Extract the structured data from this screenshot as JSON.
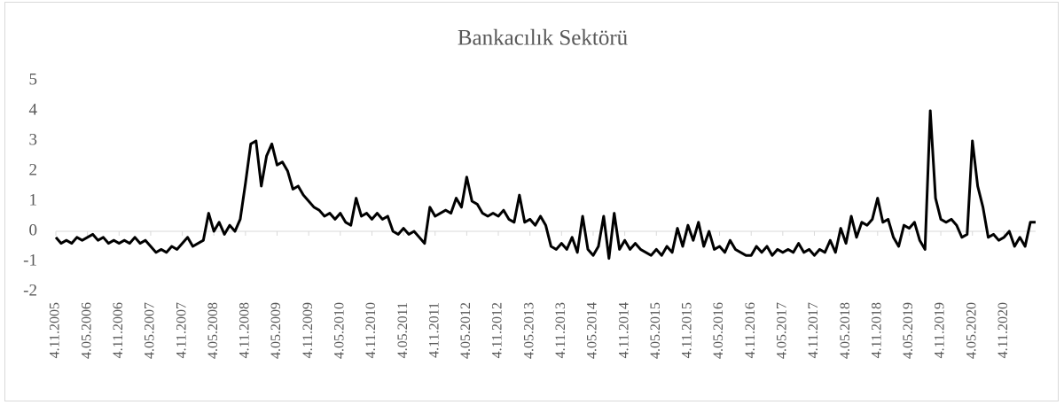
{
  "chart_data": {
    "type": "line",
    "title": "Bankacılık Sektörü",
    "categories": [
      "4.11.2005",
      null,
      null,
      null,
      null,
      null,
      "4.05.2006",
      null,
      null,
      null,
      null,
      null,
      "4.11.2006",
      null,
      null,
      null,
      null,
      null,
      "4.05.2007",
      null,
      null,
      null,
      null,
      null,
      "4.11.2007",
      null,
      null,
      null,
      null,
      null,
      "4.05.2008",
      null,
      null,
      null,
      null,
      null,
      "4.11.2008",
      null,
      null,
      null,
      null,
      null,
      "4.05.2009",
      null,
      null,
      null,
      null,
      null,
      "4.11.2009",
      null,
      null,
      null,
      null,
      null,
      "4.05.2010",
      null,
      null,
      null,
      null,
      null,
      "4.11.2010",
      null,
      null,
      null,
      null,
      null,
      "4.05.2011",
      null,
      null,
      null,
      null,
      null,
      "4.11.2011",
      null,
      null,
      null,
      null,
      null,
      "4.05.2012",
      null,
      null,
      null,
      null,
      null,
      "4.11.2012",
      null,
      null,
      null,
      null,
      null,
      "4.05.2013",
      null,
      null,
      null,
      null,
      null,
      "4.11.2013",
      null,
      null,
      null,
      null,
      null,
      "4.05.2014",
      null,
      null,
      null,
      null,
      null,
      "4.11.2014",
      null,
      null,
      null,
      null,
      null,
      "4.05.2015",
      null,
      null,
      null,
      null,
      null,
      "4.11.2015",
      null,
      null,
      null,
      null,
      null,
      "4.05.2016",
      null,
      null,
      null,
      null,
      null,
      "4.11.2016",
      null,
      null,
      null,
      null,
      null,
      "4.05.2017",
      null,
      null,
      null,
      null,
      null,
      "4.11.2017",
      null,
      null,
      null,
      null,
      null,
      "4.05.2018",
      null,
      null,
      null,
      null,
      null,
      "4.11.2018",
      null,
      null,
      null,
      null,
      null,
      "4.05.2019",
      null,
      null,
      null,
      null,
      null,
      "4.11.2019",
      null,
      null,
      null,
      null,
      null,
      "4.05.2020",
      null,
      null,
      null,
      null,
      null,
      "4.11.2020",
      null,
      null,
      null,
      null,
      null,
      null
    ],
    "series": [
      {
        "name": "Bankacılık Sektörü",
        "color": "#000000",
        "values": [
          -0.2,
          -0.4,
          -0.3,
          -0.4,
          -0.2,
          -0.3,
          -0.2,
          -0.1,
          -0.3,
          -0.2,
          -0.4,
          -0.3,
          -0.4,
          -0.3,
          -0.4,
          -0.2,
          -0.4,
          -0.3,
          -0.5,
          -0.7,
          -0.6,
          -0.7,
          -0.5,
          -0.6,
          -0.4,
          -0.2,
          -0.5,
          -0.4,
          -0.3,
          0.6,
          0.0,
          0.3,
          -0.1,
          0.2,
          0.0,
          0.4,
          1.6,
          2.9,
          3.0,
          1.5,
          2.5,
          2.9,
          2.2,
          2.3,
          2.0,
          1.4,
          1.5,
          1.2,
          1.0,
          0.8,
          0.7,
          0.5,
          0.6,
          0.4,
          0.6,
          0.3,
          0.2,
          1.1,
          0.5,
          0.6,
          0.4,
          0.6,
          0.4,
          0.5,
          0.0,
          -0.1,
          0.1,
          -0.1,
          0.0,
          -0.2,
          -0.4,
          0.8,
          0.5,
          0.6,
          0.7,
          0.6,
          1.1,
          0.8,
          1.8,
          1.0,
          0.9,
          0.6,
          0.5,
          0.6,
          0.5,
          0.7,
          0.4,
          0.3,
          1.2,
          0.3,
          0.4,
          0.2,
          0.5,
          0.2,
          -0.5,
          -0.6,
          -0.4,
          -0.6,
          -0.2,
          -0.7,
          0.5,
          -0.6,
          -0.8,
          -0.5,
          0.5,
          -0.9,
          0.6,
          -0.6,
          -0.3,
          -0.6,
          -0.4,
          -0.6,
          -0.7,
          -0.8,
          -0.6,
          -0.8,
          -0.5,
          -0.7,
          0.1,
          -0.5,
          0.2,
          -0.3,
          0.3,
          -0.5,
          0.0,
          -0.6,
          -0.5,
          -0.7,
          -0.3,
          -0.6,
          -0.7,
          -0.8,
          -0.8,
          -0.5,
          -0.7,
          -0.5,
          -0.8,
          -0.6,
          -0.7,
          -0.6,
          -0.7,
          -0.4,
          -0.7,
          -0.6,
          -0.8,
          -0.6,
          -0.7,
          -0.3,
          -0.7,
          0.1,
          -0.4,
          0.5,
          -0.2,
          0.3,
          0.2,
          0.4,
          1.1,
          0.3,
          0.4,
          -0.2,
          -0.5,
          0.2,
          0.1,
          0.3,
          -0.3,
          -0.6,
          4.0,
          1.1,
          0.4,
          0.3,
          0.4,
          0.2,
          -0.2,
          -0.1,
          3.0,
          1.5,
          0.8,
          -0.2,
          -0.1,
          -0.3,
          -0.2,
          0.0,
          -0.5,
          -0.2,
          -0.5,
          0.3,
          0.3
        ]
      }
    ],
    "ylim": [
      -2,
      5
    ],
    "yticks": [
      -2,
      -1,
      0,
      1,
      2,
      3,
      4,
      5
    ],
    "grid": false
  }
}
